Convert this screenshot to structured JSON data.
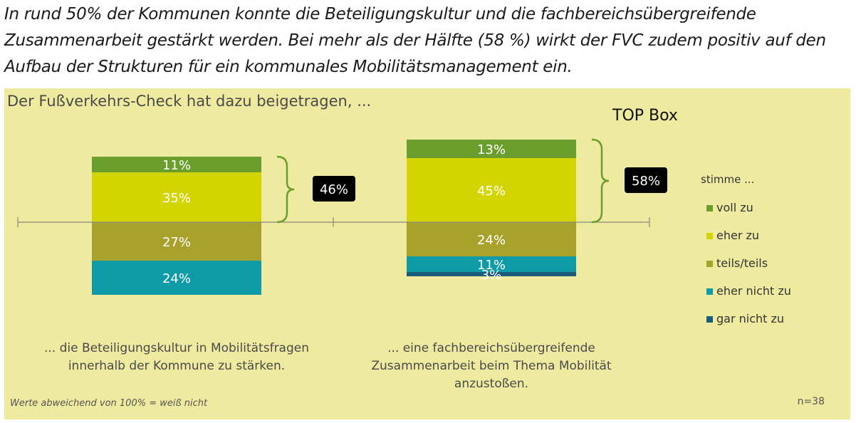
{
  "intro_text": "In rund 50% der Kommunen konnte die Beteiligungskultur und die fachbereichsübergreifende Zusammenarbeit gestärkt werden. Bei mehr als der Hälfte (58 %) wirkt der FVC zudem positiv auf den Aufbau der Strukturen für ein kommunales Mobilitätsmanagement ein.",
  "colors": {
    "panel_bg": "#eeeba0",
    "voll_zu": "#6a9f2e",
    "eher_zu": "#d4d400",
    "teils_teils": "#a8a12c",
    "eher_nicht_zu": "#0f9aa8",
    "gar_nicht_zu": "#1a5c7a"
  },
  "chart_data": {
    "type": "bar",
    "stacked": true,
    "diverging": true,
    "title": "Der Fußverkehrs-Check hat dazu beigetragen, ...",
    "categories": [
      "... die Beteiligungskultur in Mobilitätsfragen innerhalb der Kommune zu stärken.",
      "... eine fachbereichsübergreifende Zusammenarbeit beim Thema Mobilität anzustoßen."
    ],
    "category_lines": [
      [
        "... die Beteiligungskultur in Mobilitätsfragen",
        "innerhalb der Kommune zu stärken."
      ],
      [
        "... eine fachbereichsübergreifende",
        "Zusammenarbeit beim Thema Mobilität",
        "anzustoßen."
      ]
    ],
    "legend_title": "stimme ...",
    "series": [
      {
        "name": "voll zu",
        "values": [
          11,
          13
        ],
        "labels": [
          "11%",
          "13%"
        ]
      },
      {
        "name": "eher zu",
        "values": [
          35,
          45
        ],
        "labels": [
          "35%",
          "45%"
        ]
      },
      {
        "name": "teils/teils",
        "values": [
          27,
          24
        ],
        "labels": [
          "27%",
          "24%"
        ]
      },
      {
        "name": "eher nicht zu",
        "values": [
          24,
          11
        ],
        "labels": [
          "24%",
          "11%"
        ]
      },
      {
        "name": "gar nicht zu",
        "values": [
          0,
          3
        ],
        "labels": [
          "",
          "3%"
        ]
      }
    ],
    "top_box_title": "TOP Box",
    "top_box_values": [
      46,
      58
    ],
    "top_box_labels": [
      "46%",
      "58%"
    ],
    "footnote": "Werte abweichend von 100% = weiß nicht",
    "sample": "n=38",
    "legend_placement": "right"
  }
}
